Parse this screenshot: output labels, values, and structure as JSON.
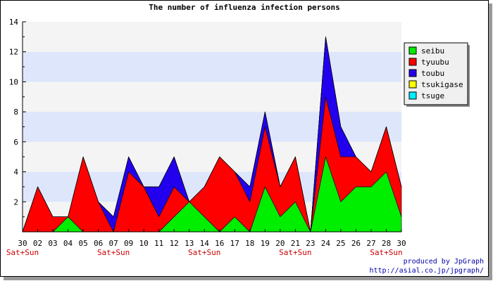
{
  "chart_data": {
    "type": "area",
    "stacked": true,
    "title": "The number of influenza infection persons",
    "xlabel": "",
    "ylabel": "",
    "ylim": [
      0,
      14
    ],
    "yticks": [
      2,
      4,
      6,
      8,
      10,
      12,
      14
    ],
    "grid": true,
    "legend_position": "top-right",
    "categories": [
      "30",
      "02",
      "03",
      "04",
      "05",
      "06",
      "07",
      "09",
      "10",
      "11",
      "12",
      "13",
      "14",
      "16",
      "17",
      "18",
      "19",
      "20",
      "21",
      "23",
      "24",
      "25",
      "26",
      "27",
      "28",
      "30"
    ],
    "weekend_labels": [
      {
        "index": 0,
        "text": "Sat+Sun"
      },
      {
        "index": 6,
        "text": "Sat+Sun"
      },
      {
        "index": 12,
        "text": "Sat+Sun"
      },
      {
        "index": 18,
        "text": "Sat+Sun"
      },
      {
        "index": 24,
        "text": "Sat+Sun"
      }
    ],
    "series": [
      {
        "name": "seibu",
        "color": "#00ee00",
        "values": [
          0,
          0,
          0,
          1,
          0,
          0,
          0,
          0,
          0,
          0,
          1,
          2,
          1,
          0,
          1,
          0,
          3,
          1,
          2,
          0,
          5,
          2,
          3,
          3,
          4,
          1
        ]
      },
      {
        "name": "tyuubu",
        "color": "#ff0000",
        "values": [
          0,
          3,
          1,
          0,
          5,
          2,
          0,
          4,
          3,
          1,
          2,
          0,
          2,
          5,
          3,
          2,
          4,
          2,
          3,
          0,
          4,
          3,
          2,
          1,
          3,
          2
        ]
      },
      {
        "name": "toubu",
        "color": "#2200ee",
        "values": [
          0,
          0,
          0,
          0,
          0,
          0,
          1,
          1,
          0,
          2,
          2,
          0,
          0,
          0,
          0,
          1,
          1,
          0,
          0,
          0,
          4,
          2,
          0,
          0,
          0,
          0
        ]
      },
      {
        "name": "tsukigase",
        "color": "#ffff00",
        "values": [
          0,
          0,
          0,
          0,
          0,
          0,
          0,
          0,
          0,
          0,
          0,
          0,
          0,
          0,
          0,
          0,
          0,
          0,
          0,
          0,
          0,
          0,
          0,
          0,
          0,
          0
        ]
      },
      {
        "name": "tsuge",
        "color": "#00eeff",
        "values": [
          0,
          0,
          0,
          0,
          0,
          0,
          0,
          0,
          0,
          0,
          0,
          0,
          0,
          0,
          0,
          0,
          0,
          0,
          0,
          0,
          0,
          0,
          0,
          0,
          0,
          0
        ]
      }
    ]
  },
  "credits": {
    "line1": "produced by JpGraph",
    "line2": "http://asial.co.jp/jpgraph/"
  }
}
